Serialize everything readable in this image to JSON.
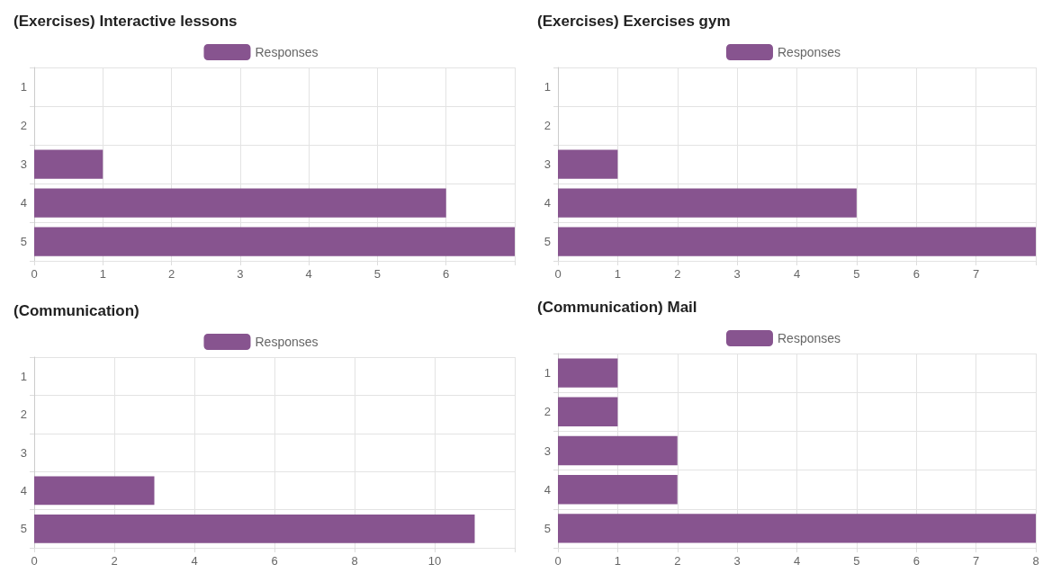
{
  "chart_data": [
    {
      "type": "bar",
      "orientation": "horizontal",
      "title": "(Exercises) Interactive lessons",
      "categories": [
        "1",
        "2",
        "3",
        "4",
        "5"
      ],
      "series": [
        {
          "name": "Responses",
          "color": "#87548f",
          "values": [
            0,
            0,
            1,
            6,
            7
          ]
        }
      ],
      "xlim": [
        0,
        7
      ],
      "xticks": [
        0,
        1,
        2,
        3,
        4,
        5,
        6,
        {
          "value": 7,
          "label": null
        }
      ],
      "grid": true,
      "legend": "top"
    },
    {
      "type": "bar",
      "orientation": "horizontal",
      "title": "(Exercises) Exercises gym",
      "categories": [
        "1",
        "2",
        "3",
        "4",
        "5"
      ],
      "series": [
        {
          "name": "Responses",
          "color": "#87548f",
          "values": [
            0,
            0,
            1,
            5,
            8
          ]
        }
      ],
      "xlim": [
        0,
        8
      ],
      "xticks": [
        0,
        1,
        2,
        3,
        4,
        5,
        6,
        7,
        {
          "value": 8,
          "label": null
        }
      ],
      "grid": true,
      "legend": "top"
    },
    {
      "type": "bar",
      "orientation": "horizontal",
      "title": "(Communication)",
      "categories": [
        "1",
        "2",
        "3",
        "4",
        "5"
      ],
      "series": [
        {
          "name": "Responses",
          "color": "#87548f",
          "values": [
            0,
            0,
            0,
            3,
            11
          ]
        }
      ],
      "xlim": [
        0,
        12
      ],
      "xticks": [
        0,
        2,
        4,
        6,
        8,
        10,
        {
          "value": 12,
          "label": null
        }
      ],
      "grid": true,
      "legend": "top"
    },
    {
      "type": "bar",
      "orientation": "horizontal",
      "title": "(Communication) Mail",
      "categories": [
        "1",
        "2",
        "3",
        "4",
        "5"
      ],
      "series": [
        {
          "name": "Responses",
          "color": "#87548f",
          "values": [
            1,
            1,
            2,
            2,
            8
          ]
        }
      ],
      "xlim": [
        0,
        8
      ],
      "xticks": [
        0,
        1,
        2,
        3,
        4,
        5,
        6,
        7,
        8
      ],
      "grid": true,
      "legend": "top"
    }
  ]
}
